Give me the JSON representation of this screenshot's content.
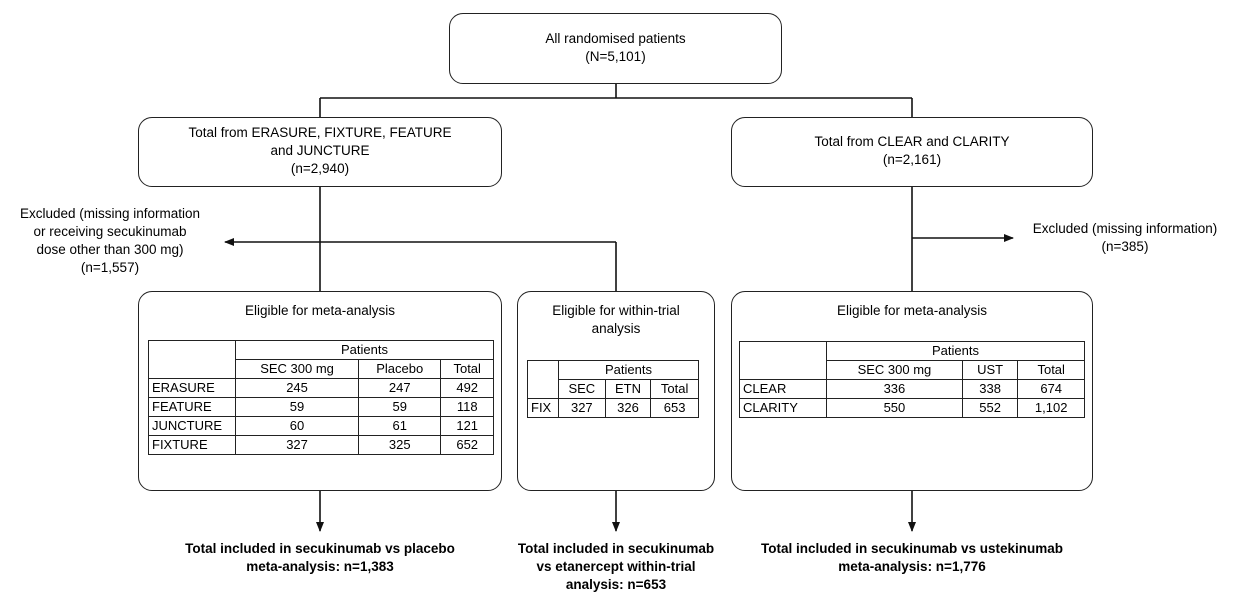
{
  "top": {
    "line1": "All randomised patients",
    "line2": "(N=5,101)"
  },
  "left_source": {
    "line1": "Total from ERASURE, FIXTURE, FEATURE",
    "line2": "and JUNCTURE",
    "line3": "(n=2,940)"
  },
  "right_source": {
    "line1": "Total from CLEAR and CLARITY",
    "line2": "(n=2,161)"
  },
  "excluded_left": {
    "line1": "Excluded (missing information",
    "line2": "or receiving secukinumab",
    "line3": "dose other than 300 mg)",
    "line4": "(n=1,557)"
  },
  "excluded_right": {
    "line1": "Excluded (missing information)",
    "line2": "(n=385)"
  },
  "meta_left": {
    "title": "Eligible for meta-analysis",
    "group_header": "Patients",
    "columns": [
      "SEC 300 mg",
      "Placebo",
      "Total"
    ],
    "rows": [
      {
        "label": "ERASURE",
        "values": [
          "245",
          "247",
          "492"
        ]
      },
      {
        "label": "FEATURE",
        "values": [
          "59",
          "59",
          "118"
        ]
      },
      {
        "label": "JUNCTURE",
        "values": [
          "60",
          "61",
          "121"
        ]
      },
      {
        "label": "FIXTURE",
        "values": [
          "327",
          "325",
          "652"
        ]
      }
    ]
  },
  "within_trial": {
    "title_line1": "Eligible for within-trial",
    "title_line2": "analysis",
    "group_header": "Patients",
    "columns": [
      "SEC",
      "ETN",
      "Total"
    ],
    "rows": [
      {
        "label": "FIX",
        "values": [
          "327",
          "326",
          "653"
        ]
      }
    ]
  },
  "meta_right": {
    "title": "Eligible for meta-analysis",
    "group_header": "Patients",
    "columns": [
      "SEC 300 mg",
      "UST",
      "Total"
    ],
    "rows": [
      {
        "label": "CLEAR",
        "values": [
          "336",
          "338",
          "674"
        ]
      },
      {
        "label": "CLARITY",
        "values": [
          "550",
          "552",
          "1,102"
        ]
      }
    ]
  },
  "outcome_left": {
    "line1": "Total included  in secukinumab vs placebo",
    "line2": "meta-analysis: n=1,383"
  },
  "outcome_middle": {
    "line1": "Total included  in secukinumab",
    "line2": "vs etanercept within-trial",
    "line3": "analysis: n=653"
  },
  "outcome_right": {
    "line1": "Total included  in secukinumab vs ustekinumab",
    "line2": "meta-analysis: n=1,776"
  }
}
